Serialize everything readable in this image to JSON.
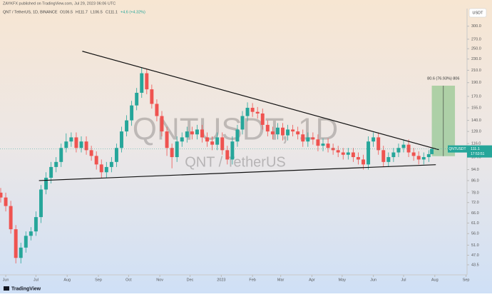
{
  "header": {
    "author": "ZAYKFX published on TradingView.com, Jul 29, 2023 06:06 UTC",
    "symbol": "QNT / TetherUS, 1D, BINANCE",
    "open": "O106.5",
    "high": "H111.7",
    "low": "L106.5",
    "close": "C111.1",
    "change": "+4.6 (+4.32%)"
  },
  "chart_data": {
    "type": "candlestick",
    "watermark": "QNTUSDT, 1D",
    "watermark_sub": "QNT / TetherUS",
    "currency": "USDT",
    "log_scale": true,
    "up_color": "#26a69a",
    "down_color": "#ef5350",
    "xlim": [
      -5.7,
      458
    ],
    "xticks": [
      {
        "value": 0,
        "label": "Jun"
      },
      {
        "value": 30,
        "label": "Jul"
      },
      {
        "value": 61,
        "label": "Aug"
      },
      {
        "value": 92,
        "label": "Sep"
      },
      {
        "value": 122,
        "label": "Oct"
      },
      {
        "value": 153,
        "label": "Nov"
      },
      {
        "value": 183,
        "label": "Dec"
      },
      {
        "value": 214,
        "label": "2023"
      },
      {
        "value": 245,
        "label": "Feb"
      },
      {
        "value": 273,
        "label": "Mar"
      },
      {
        "value": 304,
        "label": "Apr"
      },
      {
        "value": 334,
        "label": "May"
      },
      {
        "value": 365,
        "label": "Jun"
      },
      {
        "value": 395,
        "label": "Jul"
      },
      {
        "value": 426,
        "label": "Aug"
      },
      {
        "value": 457,
        "label": "Sep"
      }
    ],
    "ylim": [
      40.1,
      346
    ],
    "yticks": [
      {
        "value": 300,
        "label": "300.0"
      },
      {
        "value": 270,
        "label": "270.0"
      },
      {
        "value": 250,
        "label": "250.0"
      },
      {
        "value": 230,
        "label": "230.0"
      },
      {
        "value": 210,
        "label": "210.0"
      },
      {
        "value": 190,
        "label": "190.0"
      },
      {
        "value": 170,
        "label": "170.0"
      },
      {
        "value": 155,
        "label": "155.0"
      },
      {
        "value": 140,
        "label": "140.0"
      },
      {
        "value": 128,
        "label": "128.0"
      },
      {
        "value": 116,
        "label": "116.0"
      },
      {
        "value": 104,
        "label": "104.0"
      },
      {
        "value": 94,
        "label": "94.0"
      },
      {
        "value": 86,
        "label": "86.0"
      },
      {
        "value": 78,
        "label": "78.0"
      },
      {
        "value": 72,
        "label": "72.0"
      },
      {
        "value": 66,
        "label": "66.0"
      },
      {
        "value": 61,
        "label": "61.0"
      },
      {
        "value": 56,
        "label": "56.0"
      },
      {
        "value": 51,
        "label": "51.0"
      },
      {
        "value": 47,
        "label": "47.0"
      },
      43.5
    ],
    "x": [
      -5,
      0,
      5,
      10,
      15,
      20,
      25,
      30,
      35,
      40,
      45,
      50,
      55,
      60,
      65,
      70,
      75,
      80,
      85,
      90,
      95,
      100,
      105,
      110,
      115,
      120,
      125,
      130,
      135,
      140,
      145,
      150,
      155,
      160,
      165,
      170,
      175,
      180,
      185,
      190,
      195,
      200,
      205,
      210,
      215,
      220,
      225,
      230,
      235,
      240,
      245,
      250,
      255,
      260,
      265,
      270,
      275,
      280,
      285,
      290,
      295,
      300,
      305,
      310,
      315,
      320,
      325,
      330,
      335,
      340,
      345,
      350,
      355,
      360,
      365,
      370,
      375,
      380,
      385,
      390,
      395,
      400,
      405,
      410,
      415,
      420,
      423
    ],
    "ohlc": [
      [
        78,
        81,
        72,
        75
      ],
      [
        75,
        78,
        67,
        70
      ],
      [
        70,
        73,
        56,
        58
      ],
      [
        58,
        60,
        44,
        46
      ],
      [
        46,
        52,
        44,
        50
      ],
      [
        50,
        57,
        48,
        55
      ],
      [
        55,
        59,
        53,
        57
      ],
      [
        57,
        67,
        55,
        64
      ],
      [
        64,
        83,
        61,
        80
      ],
      [
        80,
        92,
        77,
        88
      ],
      [
        88,
        100,
        84,
        96
      ],
      [
        96,
        104,
        92,
        100
      ],
      [
        100,
        116,
        96,
        112
      ],
      [
        112,
        126,
        108,
        118
      ],
      [
        118,
        127,
        113,
        122
      ],
      [
        122,
        127,
        108,
        112
      ],
      [
        112,
        123,
        108,
        118
      ],
      [
        118,
        123,
        106,
        110
      ],
      [
        110,
        114,
        101,
        105
      ],
      [
        105,
        109,
        94,
        98
      ],
      [
        98,
        102,
        88,
        92
      ],
      [
        92,
        100,
        88,
        96
      ],
      [
        96,
        104,
        92,
        100
      ],
      [
        100,
        116,
        96,
        112
      ],
      [
        112,
        133,
        108,
        128
      ],
      [
        128,
        146,
        123,
        140
      ],
      [
        140,
        164,
        134,
        158
      ],
      [
        158,
        182,
        152,
        175
      ],
      [
        175,
        215,
        168,
        205
      ],
      [
        205,
        213,
        173,
        180
      ],
      [
        180,
        187,
        154,
        160
      ],
      [
        160,
        166,
        139,
        145
      ],
      [
        145,
        151,
        123,
        128
      ],
      [
        128,
        133,
        105,
        112
      ],
      [
        112,
        116,
        95,
        104
      ],
      [
        104,
        123,
        100,
        118
      ],
      [
        118,
        127,
        113,
        122
      ],
      [
        122,
        133,
        117,
        128
      ],
      [
        128,
        133,
        120,
        125
      ],
      [
        125,
        135,
        120,
        130
      ],
      [
        130,
        135,
        117,
        122
      ],
      [
        122,
        127,
        113,
        118
      ],
      [
        118,
        123,
        110,
        115
      ],
      [
        115,
        127,
        110,
        122
      ],
      [
        122,
        127,
        106,
        110
      ],
      [
        110,
        114,
        98,
        102
      ],
      [
        102,
        123,
        98,
        118
      ],
      [
        118,
        135,
        113,
        130
      ],
      [
        130,
        151,
        125,
        145
      ],
      [
        145,
        162,
        139,
        155
      ],
      [
        155,
        161,
        144,
        150
      ],
      [
        150,
        156,
        142,
        148
      ],
      [
        148,
        154,
        130,
        135
      ],
      [
        135,
        140,
        123,
        128
      ],
      [
        128,
        133,
        120,
        125
      ],
      [
        125,
        137,
        120,
        132
      ],
      [
        132,
        137,
        119,
        124
      ],
      [
        124,
        135,
        119,
        130
      ],
      [
        130,
        135,
        123,
        128
      ],
      [
        128,
        133,
        120,
        125
      ],
      [
        125,
        130,
        113,
        118
      ],
      [
        118,
        127,
        113,
        122
      ],
      [
        122,
        127,
        115,
        120
      ],
      [
        120,
        125,
        109,
        114
      ],
      [
        114,
        121,
        109,
        116
      ],
      [
        116,
        121,
        108,
        112
      ],
      [
        112,
        116,
        106,
        110
      ],
      [
        110,
        114,
        104,
        108
      ],
      [
        108,
        112,
        102,
        106
      ],
      [
        106,
        112,
        102,
        108
      ],
      [
        108,
        112,
        100,
        104
      ],
      [
        104,
        108,
        98,
        102
      ],
      [
        102,
        106,
        94,
        98
      ],
      [
        98,
        123,
        94,
        118
      ],
      [
        118,
        127,
        113,
        122
      ],
      [
        122,
        127,
        106,
        110
      ],
      [
        110,
        114,
        96,
        100
      ],
      [
        100,
        108,
        96,
        104
      ],
      [
        104,
        112,
        100,
        108
      ],
      [
        108,
        116,
        104,
        112
      ],
      [
        112,
        120,
        108,
        115
      ],
      [
        115,
        120,
        104,
        108
      ],
      [
        108,
        112,
        101,
        105
      ],
      [
        105,
        109,
        98,
        102
      ],
      [
        102,
        108,
        98,
        104
      ],
      [
        104,
        110,
        100,
        106.5
      ],
      [
        106.5,
        111.7,
        106.5,
        111.1
      ]
    ],
    "trendlines": [
      {
        "x": [
          76,
          430
        ],
        "y": [
          245,
          110.4
        ]
      },
      {
        "x": [
          33,
          427
        ],
        "y": [
          86,
          97.8
        ]
      }
    ],
    "position": {
      "label": "80.6 (76.93%) 806",
      "x": [
        423,
        446
      ],
      "entry": 104.8,
      "target": 185.4
    },
    "last_price": 111.1,
    "last_price_symbol": "QNTUSDT",
    "countdown": "17:53:51"
  },
  "footer": {
    "brand": "TradingView"
  }
}
